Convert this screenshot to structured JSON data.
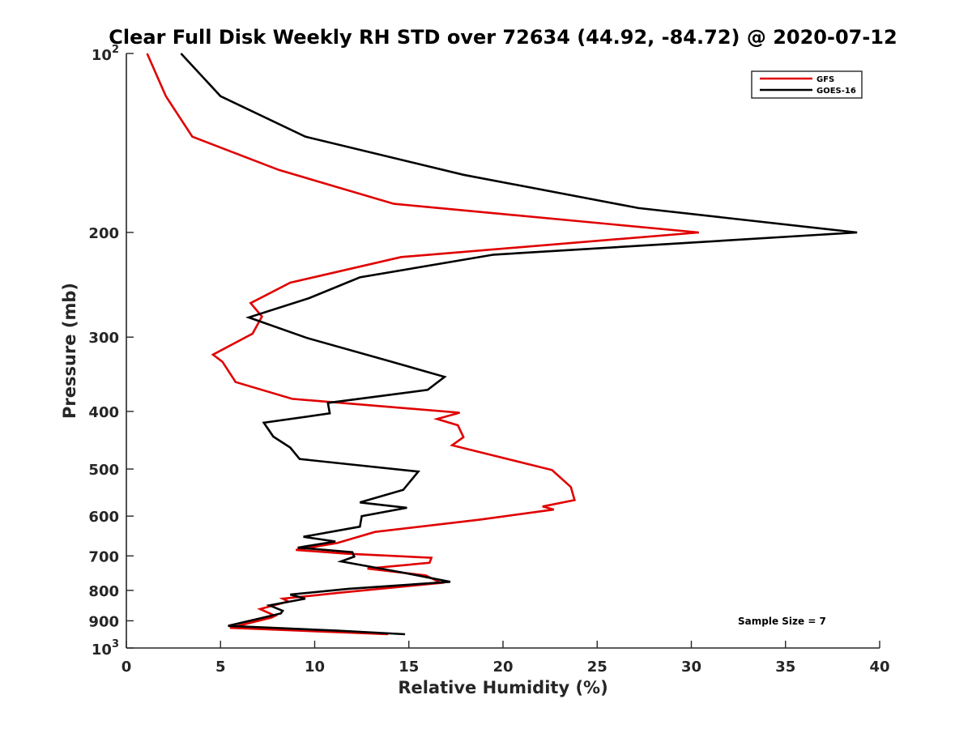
{
  "chart_data": {
    "type": "line",
    "title": "Clear Full Disk Weekly RH STD over 72634 (44.92, -84.72) @ 2020-07-12",
    "xlabel": "Relative Humidity (%)",
    "ylabel": "Pressure (mb)",
    "xlim": [
      0,
      40
    ],
    "ylim": [
      100,
      1000
    ],
    "yscale": "log",
    "y_reversed": true,
    "grid": false,
    "legend_position": "top-right",
    "x_ticks": [
      0,
      5,
      10,
      15,
      20,
      25,
      30,
      35,
      40
    ],
    "y_ticks": [
      {
        "value": 100,
        "base": "10",
        "exp": "2"
      },
      {
        "value": 200,
        "label": "200"
      },
      {
        "value": 300,
        "label": "300"
      },
      {
        "value": 400,
        "label": "400"
      },
      {
        "value": 500,
        "label": "500"
      },
      {
        "value": 600,
        "label": "600"
      },
      {
        "value": 700,
        "label": "700"
      },
      {
        "value": 800,
        "label": "800"
      },
      {
        "value": 900,
        "label": "900"
      },
      {
        "value": 1000,
        "base": "10",
        "exp": "3"
      }
    ],
    "series": [
      {
        "name": "GFS",
        "color": "#e00000",
        "x": [
          1.1,
          2.1,
          3.5,
          8.1,
          14.2,
          30.4,
          14.6,
          8.7,
          6.6,
          7.2,
          6.7,
          4.6,
          5.1,
          5.8,
          8.8,
          17.7,
          16.5,
          17.6,
          17.9,
          17.3,
          22.6,
          23.6,
          23.8,
          22.1,
          22.7,
          18.8,
          13.2,
          11.2,
          9.0,
          11.7,
          16.2,
          16.1,
          12.8,
          15.9,
          16.7,
          11.4,
          8.3,
          8.6,
          7.1,
          7.9,
          7.7,
          5.5,
          13.9
        ],
        "y": [
          100,
          118,
          138,
          157,
          179,
          200,
          220,
          243,
          263,
          277,
          296,
          321,
          330,
          357,
          381,
          402,
          412,
          422,
          442,
          456,
          502,
          536,
          564,
          578,
          585,
          608,
          638,
          666,
          684,
          694,
          705,
          719,
          735,
          755,
          777,
          807,
          826,
          835,
          860,
          883,
          889,
          925,
          948
        ]
      },
      {
        "name": "GOES-16",
        "color": "#000000",
        "x": [
          2.9,
          5.0,
          9.5,
          17.9,
          27.2,
          38.8,
          19.5,
          12.4,
          9.7,
          6.5,
          9.6,
          13.8,
          16.9,
          16.0,
          10.7,
          10.8,
          7.3,
          7.8,
          8.7,
          9.2,
          15.5,
          14.7,
          12.4,
          14.9,
          12.5,
          12.4,
          9.4,
          11.1,
          9.1,
          12.0,
          12.1,
          11.4,
          14.7,
          17.2,
          11.8,
          8.7,
          9.5,
          7.6,
          8.3,
          8.2,
          5.4,
          11.2,
          14.8
        ],
        "y": [
          100,
          118,
          138,
          160,
          182,
          200,
          218,
          238,
          258,
          278,
          301,
          328,
          350,
          368,
          387,
          403,
          418,
          441,
          460,
          481,
          505,
          542,
          569,
          581,
          600,
          625,
          650,
          662,
          678,
          690,
          702,
          715,
          747,
          774,
          795,
          813,
          826,
          848,
          866,
          875,
          918,
          935,
          948
        ]
      }
    ],
    "annotation": "Sample Size = 7"
  }
}
